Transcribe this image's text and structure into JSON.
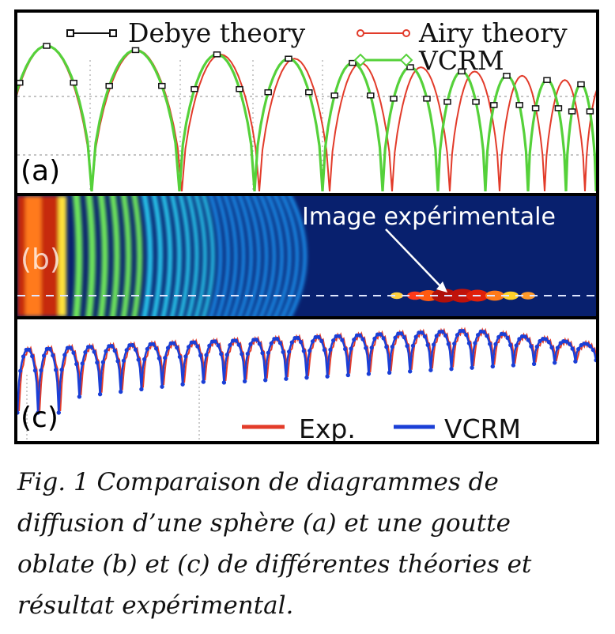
{
  "colors": {
    "debye": "#111111",
    "airy": "#e23b2a",
    "vcrm_a": "#55d13a",
    "exp": "#e33c2a",
    "vcrm_c": "#1b3fd6",
    "field_bg": "#08206e"
  },
  "chart_data": [
    {
      "type": "line",
      "panel_label": "(a)",
      "legend": [
        "Debye theory",
        "Airy theory",
        "VCRM"
      ],
      "legend_position": "top",
      "series": [
        {
          "name": "Debye theory",
          "marker": "square"
        },
        {
          "name": "Airy theory",
          "marker": "circle"
        },
        {
          "name": "VCRM",
          "marker": "diamond"
        }
      ],
      "lobes": 12,
      "grid": "dashed"
    },
    {
      "type": "heatmap",
      "panel_label": "(b)",
      "annotation": "Image expérimentale",
      "colormap": "jet"
    },
    {
      "type": "line",
      "panel_label": "(c)",
      "legend": [
        "Exp.",
        "VCRM"
      ],
      "legend_position": "bottom-right",
      "series": [
        {
          "name": "Exp.",
          "marker": "none"
        },
        {
          "name": "VCRM",
          "marker": "circle"
        }
      ],
      "lobes": 28
    }
  ],
  "caption": {
    "lines": [
      "Fig. 1 Comparaison de diagrammes de",
      "diffusion d’une sphère (a) et une goutte",
      "oblate (b) et (c) de différentes théories et",
      "résultat expérimental."
    ]
  }
}
